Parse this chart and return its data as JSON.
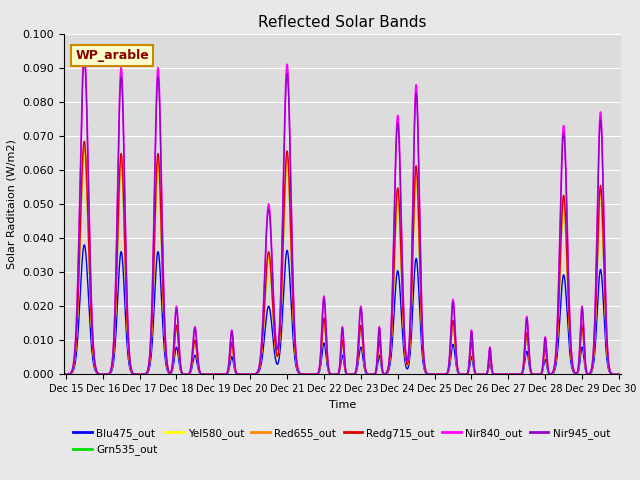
{
  "title": "Reflected Solar Bands",
  "ylabel": "Solar Raditaion (W/m2)",
  "xlabel": "Time",
  "annotation_text": "WP_arable",
  "ylim": [
    0,
    0.1
  ],
  "bg_color": "#dcdcdc",
  "fig_facecolor": "#e8e8e8",
  "series": [
    {
      "name": "Blu475_out",
      "color": "#0000ff",
      "lw": 1.0,
      "sf": 0.4
    },
    {
      "name": "Grn535_out",
      "color": "#00dd00",
      "lw": 1.0,
      "sf": 0.68
    },
    {
      "name": "Yel580_out",
      "color": "#ffff00",
      "lw": 1.0,
      "sf": 0.68
    },
    {
      "name": "Red655_out",
      "color": "#ff8800",
      "lw": 1.0,
      "sf": 0.7
    },
    {
      "name": "Redg715_out",
      "color": "#dd0000",
      "lw": 1.0,
      "sf": 0.72
    },
    {
      "name": "Nir840_out",
      "color": "#ff00ff",
      "lw": 1.2,
      "sf": 1.0
    },
    {
      "name": "Nir945_out",
      "color": "#9900cc",
      "lw": 1.0,
      "sf": 0.97
    }
  ],
  "days": [
    15.5,
    16.5,
    17.5,
    18.0,
    18.5,
    19.5,
    20.5,
    21.0,
    22.0,
    22.5,
    23.0,
    23.5,
    24.0,
    24.5,
    25.5,
    26.0,
    26.5,
    27.5,
    28.0,
    28.5,
    29.0,
    29.5
  ],
  "peaks": [
    0.095,
    0.09,
    0.09,
    0.02,
    0.014,
    0.013,
    0.05,
    0.091,
    0.023,
    0.014,
    0.02,
    0.014,
    0.076,
    0.085,
    0.022,
    0.013,
    0.008,
    0.017,
    0.011,
    0.073,
    0.02,
    0.077
  ],
  "widths": [
    0.28,
    0.24,
    0.24,
    0.14,
    0.14,
    0.12,
    0.26,
    0.26,
    0.14,
    0.1,
    0.14,
    0.1,
    0.24,
    0.22,
    0.14,
    0.1,
    0.08,
    0.12,
    0.1,
    0.24,
    0.12,
    0.22
  ],
  "n_points": 5000,
  "date_start": 15,
  "date_end": 30,
  "yticks": [
    0.0,
    0.01,
    0.02,
    0.03,
    0.04,
    0.05,
    0.06,
    0.07,
    0.08,
    0.09,
    0.1
  ],
  "legend_order": [
    "Blu475_out",
    "Grn535_out",
    "Yel580_out",
    "Red655_out",
    "Redg715_out",
    "Nir840_out",
    "Nir945_out"
  ]
}
